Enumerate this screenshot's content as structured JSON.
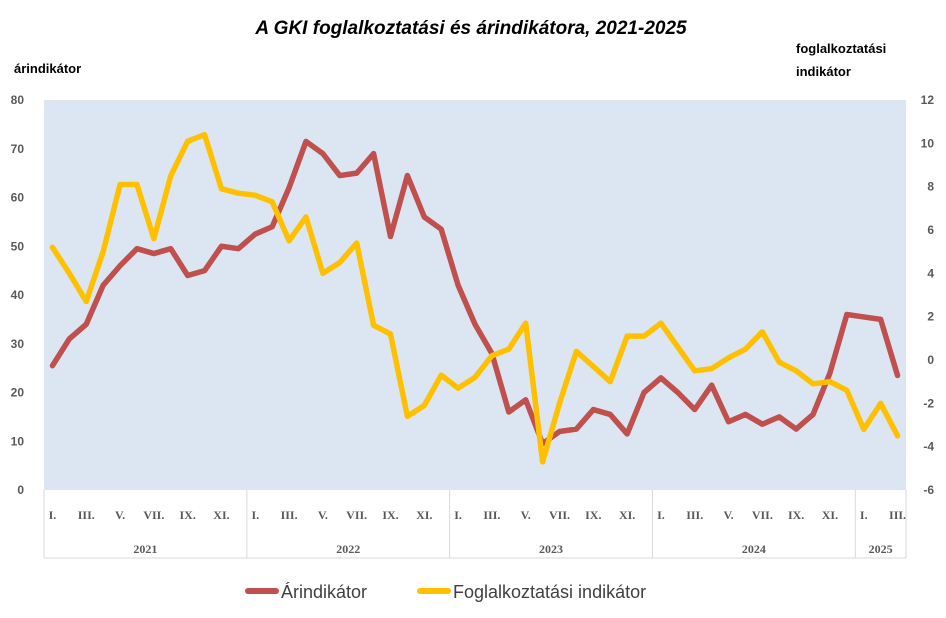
{
  "chart_data": {
    "type": "line",
    "title": "A GKI foglalkoztatási és árindikátora, 2021-2025",
    "y_left_label": "árindikátor",
    "y_right_label_lines": [
      "foglalkoztatási",
      "indikátor"
    ],
    "ylim_left": [
      0,
      80
    ],
    "ylim_right": [
      -6,
      12
    ],
    "yticks_left": [
      "0",
      "10",
      "20",
      "30",
      "40",
      "50",
      "60",
      "70",
      "80"
    ],
    "yticks_right": [
      "-6",
      "-4",
      "-2",
      "0",
      "2",
      "4",
      "6",
      "8",
      "10",
      "12"
    ],
    "grid": false,
    "background": "#dce6f2",
    "month_labels": [
      "I.",
      "III.",
      "V.",
      "VII.",
      "IX.",
      "XI."
    ],
    "month_labels_last_year": [
      "I.",
      "III."
    ],
    "years": [
      "2021",
      "2022",
      "2023",
      "2024",
      "2025"
    ],
    "legend_position": "bottom",
    "series": [
      {
        "name": "Árindikátor",
        "axis": "left",
        "color": "#c0504d",
        "values": [
          25.5,
          31,
          34,
          42,
          46,
          49.5,
          48.5,
          49.5,
          44,
          45,
          50,
          49.5,
          52.5,
          54,
          62,
          71.5,
          69,
          64.5,
          65,
          69,
          52,
          64.5,
          56,
          53.5,
          42,
          34,
          28,
          16,
          18.5,
          9.5,
          12,
          12.5,
          16.5,
          15.5,
          11.5,
          20,
          23,
          20,
          16.5,
          21.5,
          14,
          15.5,
          13.5,
          15,
          12.5,
          15.5,
          24,
          36,
          35.5,
          35,
          23.5
        ]
      },
      {
        "name": "Foglalkoztatási indikátor",
        "axis": "right",
        "color": "#ffc000",
        "values": [
          5.2,
          4,
          2.7,
          5,
          8.1,
          8.1,
          5.6,
          8.5,
          10.1,
          10.4,
          7.9,
          7.7,
          7.6,
          7.3,
          5.5,
          6.6,
          4,
          4.5,
          5.4,
          1.6,
          1.2,
          -2.6,
          -2.1,
          -0.7,
          -1.3,
          -0.8,
          0.2,
          0.5,
          1.7,
          -4.7,
          -2,
          0.4,
          -0.3,
          -1,
          1.1,
          1.1,
          1.7,
          0.6,
          -0.5,
          -0.4,
          0.1,
          0.5,
          1.3,
          -0.1,
          -0.5,
          -1.1,
          -1,
          -1.4,
          -3.2,
          -2,
          -3.5
        ]
      }
    ]
  }
}
